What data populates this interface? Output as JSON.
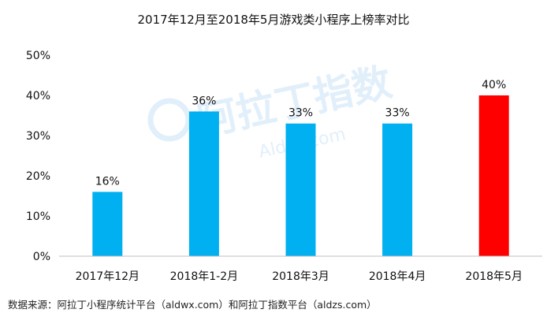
{
  "chart_data": {
    "type": "bar",
    "title": "2017年12月至2018年5月游戏类小程序上榜率对比",
    "categories": [
      "2017年12月",
      "2018年1-2月",
      "2018年3月",
      "2018年4月",
      "2018年5月"
    ],
    "values": [
      16,
      36,
      33,
      33,
      40
    ],
    "data_labels": [
      "16%",
      "36%",
      "33%",
      "33%",
      "40%"
    ],
    "y_ticks": [
      "0%",
      "10%",
      "20%",
      "30%",
      "40%",
      "50%"
    ],
    "ylim": [
      0,
      50
    ],
    "xlabel": "",
    "ylabel": "",
    "grid": false,
    "bar_colors": [
      "#00b0f0",
      "#00b0f0",
      "#00b0f0",
      "#00b0f0",
      "#ff0000"
    ]
  },
  "watermark": {
    "text": "阿拉丁指数",
    "subtext": "Aldzs.com"
  },
  "source_note": "数据来源：阿拉丁小程序统计平台（aldwx.com）和阿拉丁指数平台（aldzs.com）"
}
